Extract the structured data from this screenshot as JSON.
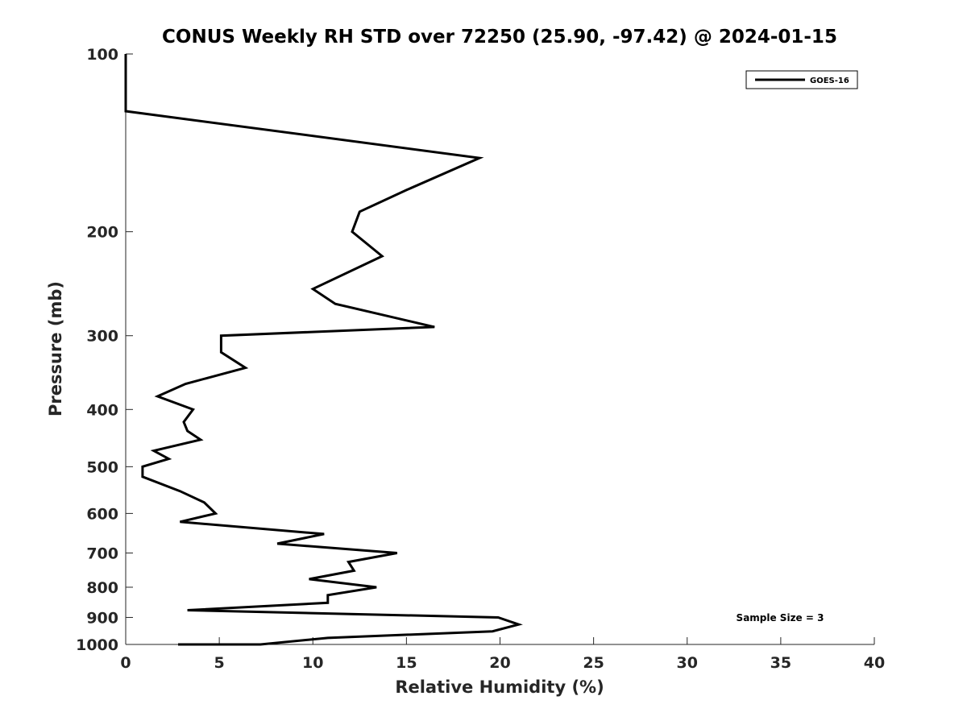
{
  "chart_data": {
    "type": "line",
    "title": "CONUS Weekly RH STD over 72250 (25.90, -97.42) @ 2024-01-15",
    "xlabel": "Relative Humidity (%)",
    "ylabel": "Pressure (mb)",
    "xlim": [
      0,
      40
    ],
    "ylim": [
      100,
      1000
    ],
    "yscale": "log",
    "xticks": [
      0,
      5,
      10,
      15,
      20,
      25,
      30,
      35,
      40
    ],
    "yticks": [
      100,
      200,
      300,
      400,
      500,
      600,
      700,
      800,
      900,
      1000
    ],
    "legend_position": "top-right",
    "series": [
      {
        "name": "GOES-16",
        "color": "#000000",
        "points": [
          [
            0.0,
            100
          ],
          [
            0.0,
            125
          ],
          [
            18.9,
            150
          ],
          [
            15.0,
            170
          ],
          [
            12.5,
            185
          ],
          [
            12.1,
            200
          ],
          [
            13.7,
            220
          ],
          [
            10.0,
            250
          ],
          [
            11.2,
            265
          ],
          [
            16.5,
            290
          ],
          [
            5.1,
            300
          ],
          [
            5.1,
            320
          ],
          [
            6.4,
            340
          ],
          [
            3.2,
            362
          ],
          [
            1.7,
            380
          ],
          [
            3.6,
            400
          ],
          [
            3.1,
            420
          ],
          [
            3.3,
            435
          ],
          [
            4.0,
            450
          ],
          [
            1.5,
            470
          ],
          [
            2.3,
            485
          ],
          [
            0.9,
            500
          ],
          [
            0.9,
            520
          ],
          [
            2.9,
            550
          ],
          [
            4.2,
            575
          ],
          [
            4.8,
            600
          ],
          [
            2.9,
            620
          ],
          [
            10.6,
            650
          ],
          [
            8.1,
            675
          ],
          [
            14.5,
            700
          ],
          [
            11.9,
            725
          ],
          [
            12.2,
            750
          ],
          [
            9.8,
            775
          ],
          [
            13.4,
            800
          ],
          [
            10.8,
            825
          ],
          [
            10.8,
            850
          ],
          [
            3.3,
            875
          ],
          [
            19.9,
            900
          ],
          [
            21.0,
            925
          ],
          [
            19.6,
            950
          ],
          [
            10.8,
            975
          ],
          [
            7.2,
            1000
          ],
          [
            2.8,
            1000
          ]
        ]
      }
    ],
    "annotations": [
      "Sample Size = 3"
    ]
  }
}
